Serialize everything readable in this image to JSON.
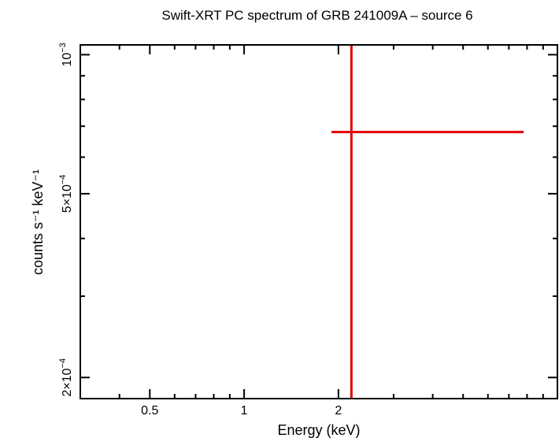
{
  "chart_data": {
    "type": "scatter",
    "title": "Swift-XRT PC spectrum of GRB 241009A – source 6",
    "xlabel": "Energy (keV)",
    "ylabel": "counts s⁻¹ keV⁻¹",
    "xscale": "log",
    "yscale": "log",
    "xlim": [
      0.3,
      10
    ],
    "ylim": [
      0.00018,
      0.00105
    ],
    "x_tick_labels": [
      {
        "value": 0.5,
        "label": "0.5"
      },
      {
        "value": 1,
        "label": "1"
      },
      {
        "value": 2,
        "label": "2"
      }
    ],
    "y_tick_labels": [
      {
        "value": 0.0002,
        "base": "2×10",
        "exp": "−4"
      },
      {
        "value": 0.0005,
        "base": "5×10",
        "exp": "−4"
      },
      {
        "value": 0.001,
        "base": "10",
        "exp": "−3"
      }
    ],
    "grid": false,
    "series": [
      {
        "color": "#e00000",
        "points": [
          {
            "x": 2.2,
            "y": 0.00068,
            "xerr": [
              1.9,
              7.8
            ],
            "yerr": [
              0.00018,
              0.00105
            ]
          }
        ]
      }
    ]
  }
}
